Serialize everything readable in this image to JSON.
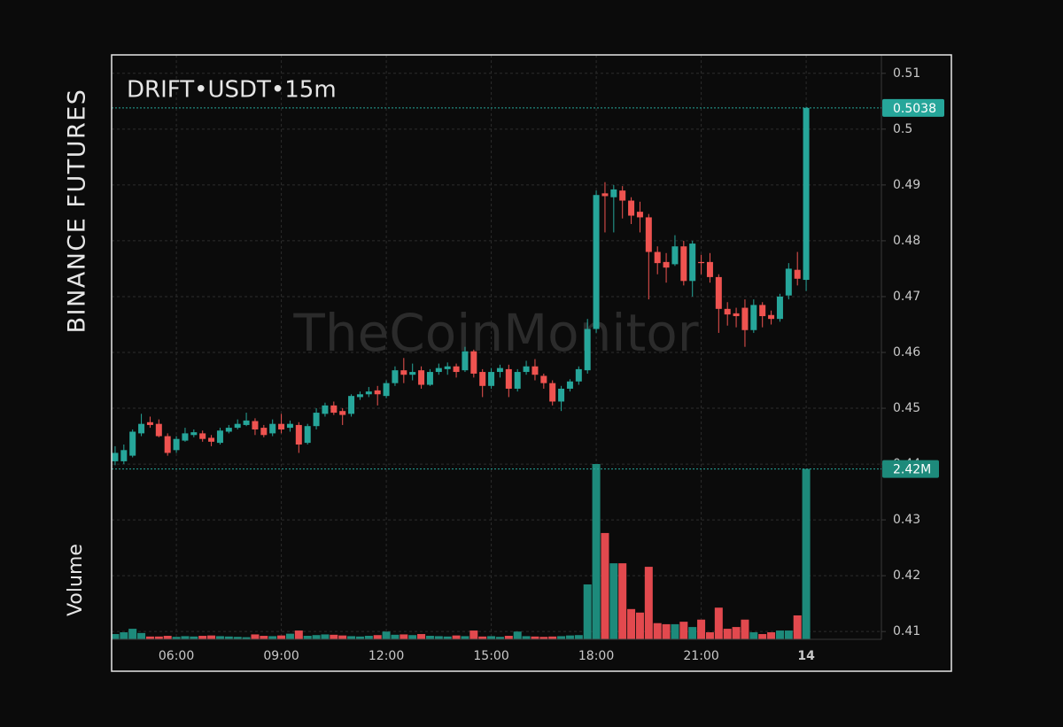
{
  "chart_data": {
    "type": "candlestick",
    "title": "DRIFT•USDT•15m",
    "exchange": "BINANCE FUTURES",
    "volume_label": "Volume",
    "watermark": "TheCoinMonitor",
    "last_volume_label": "2.42M",
    "up_color": "#26a69a",
    "down_color": "#ef5350",
    "volume_up_color": "#1d8a7b",
    "volume_down_color": "#e2494e",
    "grid": true,
    "xlim": [
      4.15,
      26.15
    ],
    "xticks": [
      {
        "value": 6,
        "label": "06:00"
      },
      {
        "value": 9,
        "label": "09:00"
      },
      {
        "value": 12,
        "label": "12:00"
      },
      {
        "value": 15,
        "label": "15:00"
      },
      {
        "value": 18,
        "label": "18:00"
      },
      {
        "value": 21,
        "label": "21:00"
      },
      {
        "value": 24,
        "label": "14"
      }
    ],
    "ylim": [
      0.4086,
      0.5133
    ],
    "yticks": [
      0.41,
      0.42,
      0.43,
      0.44,
      0.45,
      0.46,
      0.47,
      0.48,
      0.49,
      0.5,
      0.51
    ],
    "x": [
      4.25,
      4.5,
      4.75,
      5,
      5.25,
      5.5,
      5.75,
      6,
      6.25,
      6.5,
      6.75,
      7,
      7.25,
      7.5,
      7.75,
      8,
      8.25,
      8.5,
      8.75,
      9,
      9.25,
      9.5,
      9.75,
      10,
      10.25,
      10.5,
      10.75,
      11,
      11.25,
      11.5,
      11.75,
      12,
      12.25,
      12.5,
      12.75,
      13,
      13.25,
      13.5,
      13.75,
      14,
      14.25,
      14.5,
      14.75,
      15,
      15.25,
      15.5,
      15.75,
      16,
      16.25,
      16.5,
      16.75,
      17,
      17.25,
      17.5,
      17.75,
      18,
      18.25,
      18.5,
      18.75,
      19,
      19.25,
      19.5,
      19.75,
      20,
      20.25,
      20.5,
      20.75,
      21,
      21.25,
      21.5,
      21.75,
      22,
      22.25,
      22.5,
      22.75,
      23,
      23.25,
      23.5,
      23.75,
      24
    ],
    "open": [
      0.4405,
      0.4405,
      0.4415,
      0.4455,
      0.4475,
      0.4472,
      0.445,
      0.4425,
      0.4442,
      0.4452,
      0.4455,
      0.4447,
      0.4438,
      0.4458,
      0.4465,
      0.447,
      0.4477,
      0.4465,
      0.4455,
      0.4472,
      0.4465,
      0.447,
      0.4438,
      0.4468,
      0.449,
      0.4505,
      0.4495,
      0.449,
      0.452,
      0.4525,
      0.4532,
      0.4522,
      0.4545,
      0.4568,
      0.456,
      0.4568,
      0.4542,
      0.4565,
      0.457,
      0.4575,
      0.4568,
      0.4602,
      0.4565,
      0.454,
      0.4565,
      0.457,
      0.4535,
      0.4565,
      0.4575,
      0.4558,
      0.4545,
      0.4512,
      0.4535,
      0.4548,
      0.4568,
      0.4642,
      0.4885,
      0.4878,
      0.489,
      0.4872,
      0.4852,
      0.4842,
      0.478,
      0.4762,
      0.4758,
      0.479,
      0.4728,
      0.4762,
      0.4762,
      0.4735,
      0.4678,
      0.467,
      0.468,
      0.464,
      0.4685,
      0.4667,
      0.466,
      0.4702,
      0.4748,
      0.473
    ],
    "high": [
      0.4432,
      0.4435,
      0.4462,
      0.449,
      0.4485,
      0.448,
      0.4455,
      0.445,
      0.4465,
      0.4462,
      0.446,
      0.4452,
      0.4465,
      0.447,
      0.448,
      0.4492,
      0.4482,
      0.447,
      0.448,
      0.449,
      0.4478,
      0.4475,
      0.4472,
      0.45,
      0.451,
      0.4512,
      0.45,
      0.4525,
      0.453,
      0.4538,
      0.454,
      0.455,
      0.4575,
      0.459,
      0.458,
      0.4575,
      0.457,
      0.458,
      0.4582,
      0.458,
      0.461,
      0.4605,
      0.457,
      0.4572,
      0.4578,
      0.4578,
      0.457,
      0.4585,
      0.4588,
      0.4562,
      0.455,
      0.454,
      0.4552,
      0.4575,
      0.466,
      0.489,
      0.4905,
      0.49,
      0.4898,
      0.4878,
      0.487,
      0.4848,
      0.479,
      0.4778,
      0.481,
      0.48,
      0.48,
      0.4775,
      0.4778,
      0.474,
      0.469,
      0.468,
      0.4695,
      0.4695,
      0.469,
      0.4675,
      0.4705,
      0.476,
      0.478,
      0.504
    ],
    "low": [
      0.4398,
      0.44,
      0.4412,
      0.445,
      0.4465,
      0.4448,
      0.4415,
      0.442,
      0.444,
      0.4448,
      0.444,
      0.4432,
      0.4435,
      0.4455,
      0.4462,
      0.4468,
      0.4452,
      0.4448,
      0.445,
      0.4455,
      0.4458,
      0.442,
      0.4435,
      0.4462,
      0.4485,
      0.4488,
      0.447,
      0.4485,
      0.4515,
      0.452,
      0.4505,
      0.4518,
      0.454,
      0.4545,
      0.455,
      0.4535,
      0.454,
      0.456,
      0.456,
      0.4555,
      0.4565,
      0.4555,
      0.452,
      0.4535,
      0.4555,
      0.452,
      0.453,
      0.456,
      0.455,
      0.4535,
      0.4505,
      0.4495,
      0.453,
      0.4542,
      0.4562,
      0.4635,
      0.4815,
      0.4815,
      0.484,
      0.483,
      0.4815,
      0.4695,
      0.474,
      0.4725,
      0.4755,
      0.472,
      0.47,
      0.474,
      0.4725,
      0.4635,
      0.4648,
      0.4645,
      0.461,
      0.4635,
      0.4645,
      0.465,
      0.4655,
      0.4695,
      0.472,
      0.471
    ],
    "close": [
      0.442,
      0.4425,
      0.4458,
      0.4472,
      0.447,
      0.445,
      0.442,
      0.4445,
      0.4455,
      0.4457,
      0.4445,
      0.444,
      0.446,
      0.4465,
      0.4472,
      0.4478,
      0.4462,
      0.4452,
      0.4472,
      0.4462,
      0.4472,
      0.4435,
      0.4468,
      0.4492,
      0.4505,
      0.4492,
      0.4488,
      0.4522,
      0.4525,
      0.453,
      0.4525,
      0.4545,
      0.4568,
      0.456,
      0.4565,
      0.4542,
      0.4565,
      0.4572,
      0.4575,
      0.4565,
      0.4602,
      0.4562,
      0.454,
      0.4565,
      0.4572,
      0.4535,
      0.4565,
      0.4575,
      0.456,
      0.4545,
      0.4512,
      0.4535,
      0.4548,
      0.457,
      0.4642,
      0.4882,
      0.488,
      0.4892,
      0.4872,
      0.4845,
      0.4842,
      0.478,
      0.476,
      0.4752,
      0.479,
      0.4728,
      0.4795,
      0.476,
      0.4735,
      0.4678,
      0.4668,
      0.4665,
      0.464,
      0.4685,
      0.4665,
      0.466,
      0.47,
      0.475,
      0.4732,
      0.5038
    ],
    "volume": [
      75000,
      100000,
      150000,
      90000,
      40000,
      40000,
      50000,
      35000,
      45000,
      40000,
      50000,
      55000,
      45000,
      40000,
      35000,
      30000,
      70000,
      50000,
      45000,
      55000,
      80000,
      125000,
      50000,
      60000,
      70000,
      65000,
      55000,
      45000,
      40000,
      50000,
      60000,
      110000,
      65000,
      70000,
      60000,
      75000,
      50000,
      45000,
      40000,
      55000,
      45000,
      125000,
      40000,
      45000,
      35000,
      50000,
      110000,
      45000,
      40000,
      35000,
      40000,
      45000,
      55000,
      60000,
      780000,
      2490000,
      1510000,
      1080000,
      1080000,
      430000,
      380000,
      1030000,
      230000,
      215000,
      215000,
      250000,
      175000,
      280000,
      100000,
      450000,
      150000,
      175000,
      280000,
      100000,
      75000,
      100000,
      125000,
      125000,
      340000,
      2420000
    ]
  }
}
